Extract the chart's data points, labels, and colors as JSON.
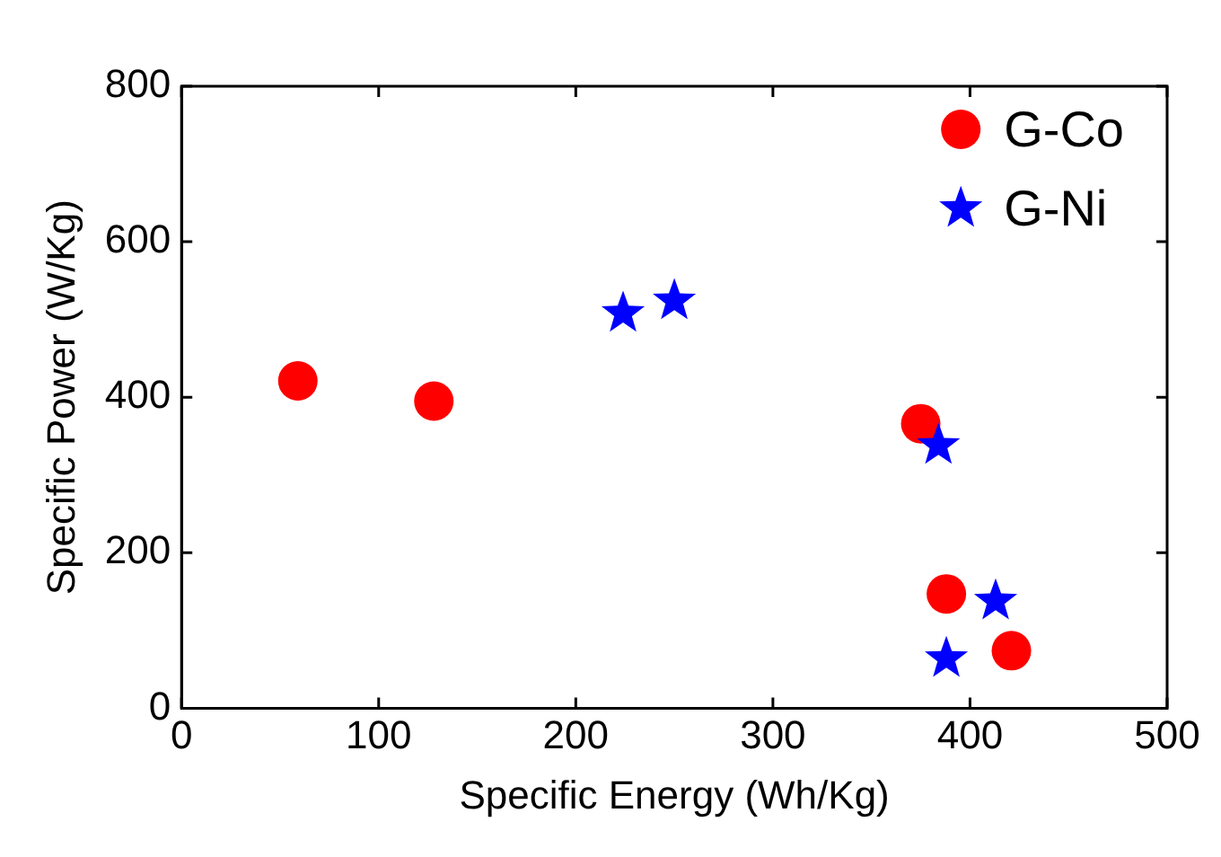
{
  "chart_data": {
    "type": "scatter",
    "xlabel": "Specific Energy (Wh/Kg)",
    "ylabel": "Specific Power (W/Kg)",
    "xlim": [
      0,
      500
    ],
    "ylim": [
      0,
      800
    ],
    "xticks": [
      0,
      100,
      200,
      300,
      400,
      500
    ],
    "yticks": [
      0,
      200,
      400,
      600,
      800
    ],
    "legend": "top right",
    "grid": false,
    "series": [
      {
        "name": "G-Co",
        "color": "#ff0000",
        "marker": "circle",
        "x": [
          59,
          128,
          375,
          388,
          421
        ],
        "values": [
          421,
          395,
          366,
          147,
          74
        ]
      },
      {
        "name": "G-Ni",
        "color": "#0000ff",
        "marker": "star",
        "x": [
          224,
          250,
          384,
          413,
          388
        ],
        "values": [
          508,
          524,
          338,
          138,
          64
        ]
      }
    ]
  }
}
